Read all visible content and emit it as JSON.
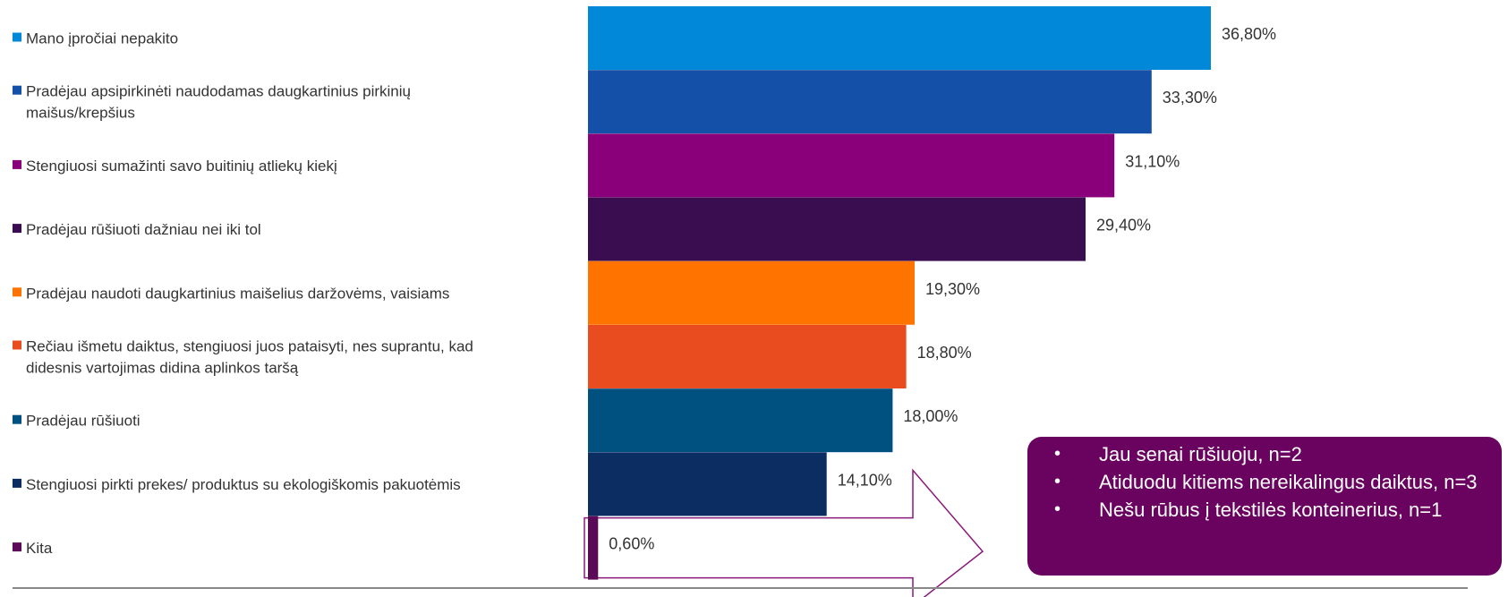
{
  "chart_data": {
    "type": "bar",
    "orientation": "horizontal",
    "title": "",
    "xlabel": "",
    "ylabel": "",
    "xlim": [
      0,
      36.8
    ],
    "grid": false,
    "legend": "left",
    "categories": [
      "Mano įpročiai nepakito",
      "Pradėjau apsipirkinėti naudodamas daugkartinius pirkinių maišus/krepšius",
      "Stengiuosi sumažinti savo buitinių atliekų kiekį",
      "Pradėjau rūšiuoti dažniau nei iki tol",
      "Pradėjau naudoti daugkartinius maišelius daržovėms, vaisiams",
      "Rečiau išmetu daiktus, stengiuosi juos pataisyti, nes suprantu, kad didesnis vartojimas didina aplinkos taršą",
      "Pradėjau rūšiuoti",
      "Stengiuosi pirkti prekes/ produktus su ekologiškomis pakuotėmis",
      "Kita"
    ],
    "label_lines": [
      [
        "Mano įpročiai nepakito"
      ],
      [
        "Pradėjau apsipirkinėti naudodamas daugkartinius pirkinių",
        "maišus/krepšius"
      ],
      [
        "Stengiuosi sumažinti savo buitinių atliekų kiekį"
      ],
      [
        "Pradėjau rūšiuoti dažniau nei iki tol"
      ],
      [
        "Pradėjau naudoti daugkartinius maišelius daržovėms, vaisiams"
      ],
      [
        "Rečiau išmetu daiktus, stengiuosi juos pataisyti, nes suprantu, kad",
        "didesnis vartojimas didina aplinkos taršą"
      ],
      [
        "Pradėjau rūšiuoti"
      ],
      [
        "Stengiuosi pirkti prekes/ produktus su ekologiškomis pakuotėmis"
      ],
      [
        "Kita"
      ]
    ],
    "values": [
      36.8,
      33.3,
      31.1,
      29.4,
      19.3,
      18.8,
      18.0,
      14.1,
      0.6
    ],
    "value_labels": [
      "36,80%",
      "33,30%",
      "31,10%",
      "29,40%",
      "19,30%",
      "18,80%",
      "18,00%",
      "14,10%",
      "0,60%"
    ],
    "colors": [
      "#0288d8",
      "#1550a8",
      "#8a007a",
      "#3a0c50",
      "#ff7300",
      "#e84c1f",
      "#005080",
      "#0b2d62",
      "#5b0a58"
    ]
  },
  "callout": {
    "items": [
      "Jau senai rūšiuoju, n=2",
      "Atiduodu kitiems nereikalingus daiktus, n=3",
      "Nešu rūbus į tekstilės konteinerius, n=1"
    ]
  }
}
